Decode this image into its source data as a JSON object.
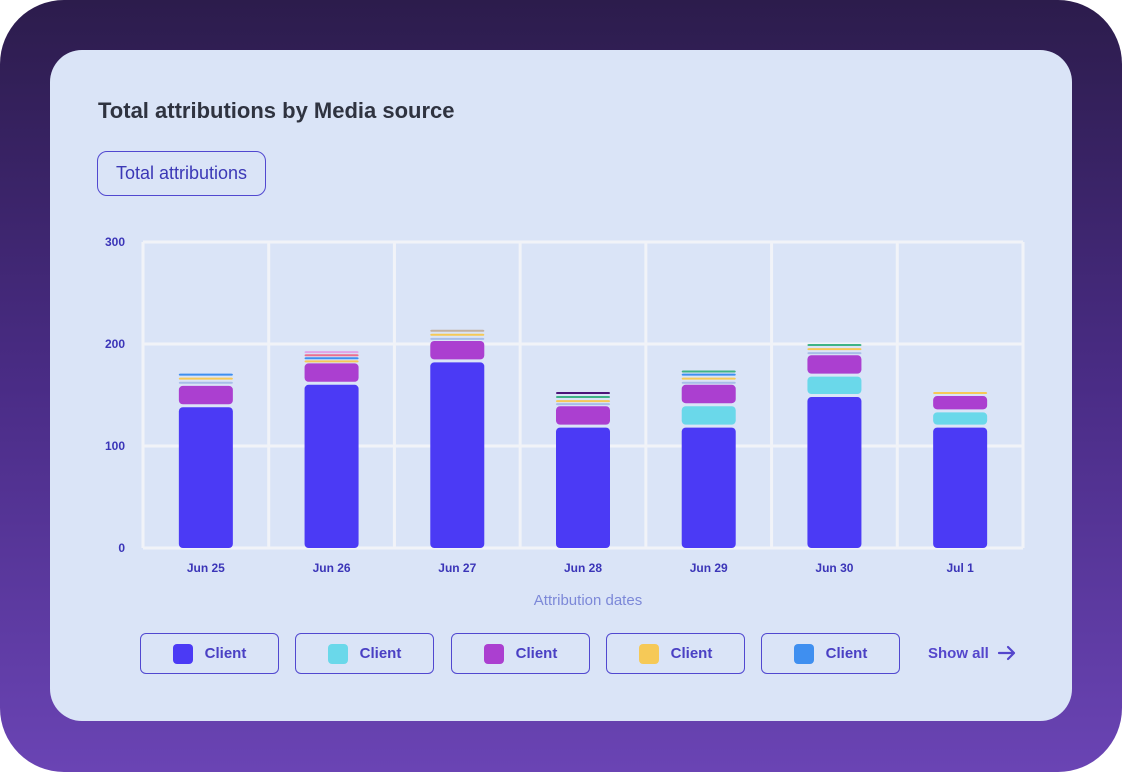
{
  "page": {
    "title": "Total attributions by Media source",
    "metric_button": "Total attributions"
  },
  "chart_data": {
    "type": "bar",
    "stacked": true,
    "title": "Total attributions by Media source",
    "xlabel": "Attribution dates",
    "ylabel": "",
    "ylim": [
      0,
      300
    ],
    "yticks": [
      0,
      100,
      200,
      300
    ],
    "grid": true,
    "categories": [
      "Jun 25",
      "Jun 26",
      "Jun 27",
      "Jun 28",
      "Jun 29",
      "Jun 30",
      "Jul 1"
    ],
    "series": [
      {
        "color": "#4b3af5",
        "values": [
          138,
          160,
          182,
          118,
          118,
          148,
          118
        ]
      },
      {
        "color": "#6ad8ea",
        "values": [
          0,
          0,
          0,
          0,
          21,
          20,
          15
        ]
      },
      {
        "color": "#ab3fd0",
        "values": [
          21,
          21,
          21,
          21,
          21,
          21,
          16
        ]
      },
      {
        "color": "#a8bde8",
        "values": [
          4,
          0,
          3,
          3,
          3,
          3,
          0
        ]
      },
      {
        "color": "#f6c957",
        "values": [
          4,
          3,
          4,
          3,
          4,
          4,
          4
        ]
      },
      {
        "color": "#3f8ff0",
        "values": [
          4,
          3,
          0,
          0,
          4,
          0,
          0
        ]
      },
      {
        "color": "#ec6f8e",
        "values": [
          0,
          3,
          0,
          0,
          0,
          0,
          0
        ]
      },
      {
        "color": "#e2a3e8",
        "values": [
          0,
          3,
          0,
          0,
          0,
          0,
          0
        ]
      },
      {
        "color": "#3fb386",
        "values": [
          0,
          0,
          0,
          4,
          3,
          4,
          0
        ]
      },
      {
        "color": "#c2b0a0",
        "values": [
          0,
          0,
          4,
          0,
          0,
          0,
          0
        ]
      },
      {
        "color": "#4b1478",
        "values": [
          0,
          0,
          0,
          4,
          0,
          0,
          0
        ]
      }
    ]
  },
  "legend": {
    "items": [
      {
        "label": "Client",
        "color": "#4b3af5"
      },
      {
        "label": "Client",
        "color": "#6ad8ea"
      },
      {
        "label": "Client",
        "color": "#ab3fd0"
      },
      {
        "label": "Client",
        "color": "#f6c957"
      },
      {
        "label": "Client",
        "color": "#3f8ff0"
      }
    ],
    "show_all": "Show all"
  },
  "icons": {
    "show_all": "arrow-right-icon"
  }
}
